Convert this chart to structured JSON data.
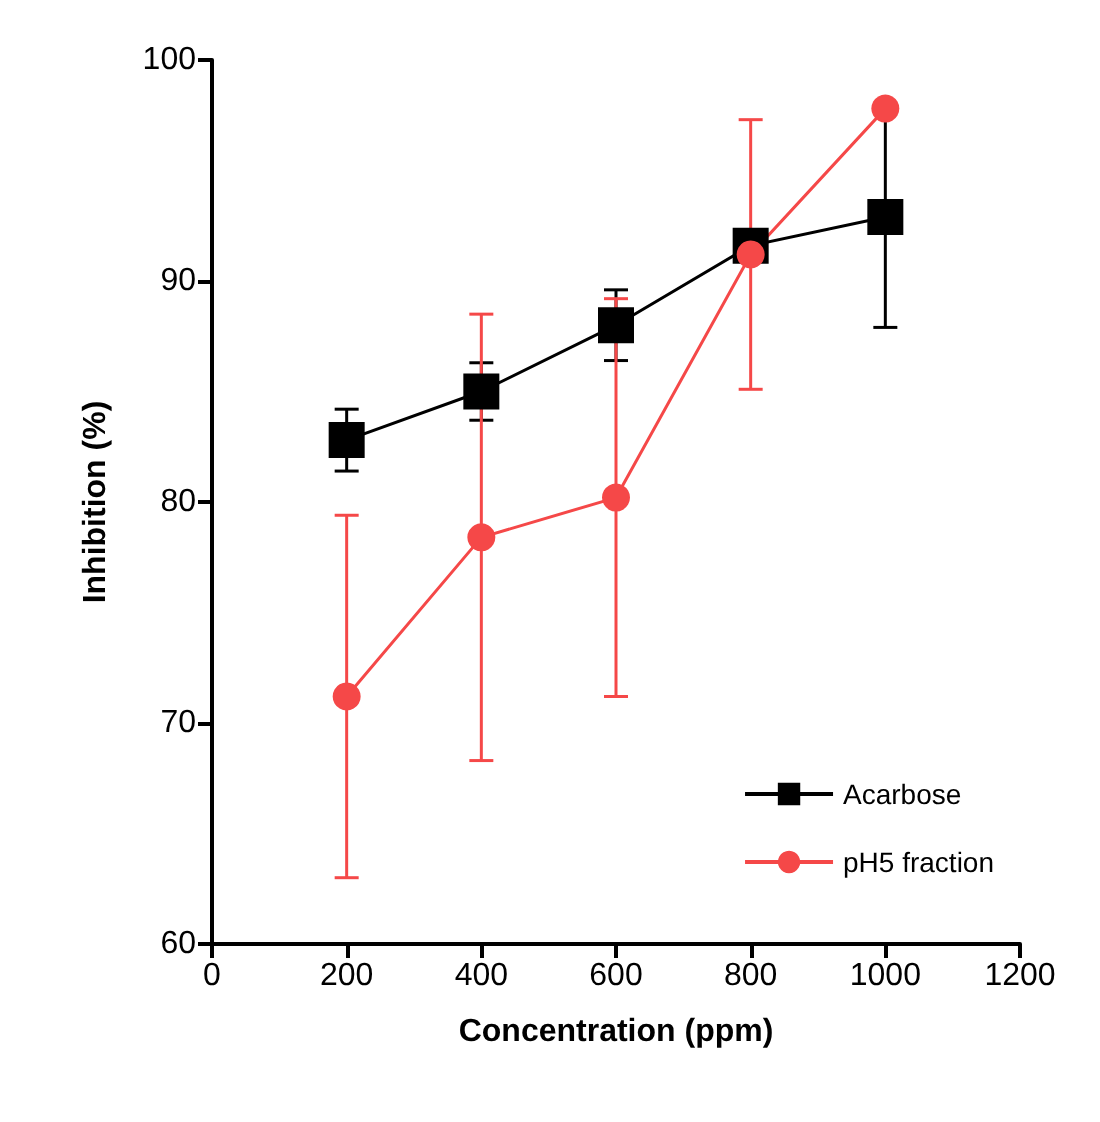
{
  "chart_data": {
    "type": "line",
    "xlabel": "Concentration (ppm)",
    "ylabel": "Inhibition (%)",
    "x": [
      200,
      400,
      600,
      800,
      1000
    ],
    "xlim": [
      0,
      1200
    ],
    "xticks": [
      0,
      200,
      400,
      600,
      800,
      1000,
      1200
    ],
    "ylim": [
      60,
      100
    ],
    "yticks": [
      60,
      70,
      80,
      90,
      100
    ],
    "grid": false,
    "legend": "bottom right",
    "series": [
      {
        "name": "Acarbose",
        "color": "#000000",
        "marker": "square",
        "values": [
          82.8,
          85.0,
          88.0,
          91.6,
          92.9
        ],
        "errors": [
          1.4,
          1.3,
          1.6,
          0.3,
          5.0
        ]
      },
      {
        "name": "pH5 fraction",
        "color": "#f54848",
        "marker": "circle",
        "values": [
          71.2,
          78.4,
          80.2,
          91.2,
          97.8
        ],
        "errors": [
          8.2,
          10.1,
          9.0,
          6.1,
          null
        ]
      }
    ]
  }
}
